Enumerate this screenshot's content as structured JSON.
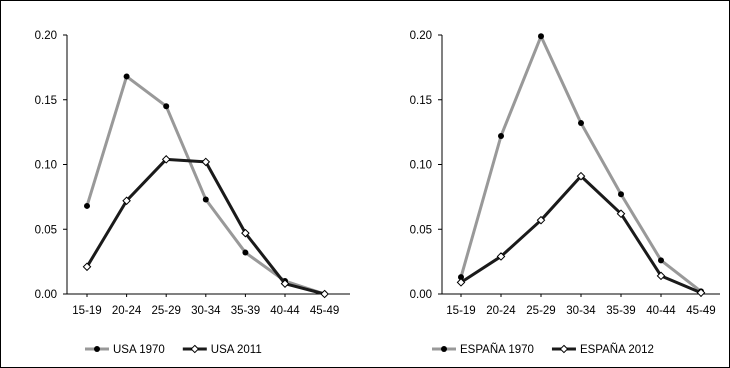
{
  "chart_data": [
    {
      "type": "line",
      "categories": [
        "15-19",
        "20-24",
        "25-29",
        "30-34",
        "35-39",
        "40-44",
        "45-49"
      ],
      "ylim": [
        0,
        0.2
      ],
      "yticks": [
        "0.00",
        "0.05",
        "0.10",
        "0.15",
        "0.20"
      ],
      "grid": false,
      "legend_position": "bottom",
      "series": [
        {
          "name": "USA 1970",
          "values": [
            0.068,
            0.168,
            0.145,
            0.073,
            0.032,
            0.01,
            0.0
          ],
          "color": "#999999",
          "marker": "filled-circle"
        },
        {
          "name": "USA 2011",
          "values": [
            0.021,
            0.072,
            0.104,
            0.102,
            0.047,
            0.008,
            0.0
          ],
          "color": "#1a1a1a",
          "marker": "open-diamond"
        }
      ]
    },
    {
      "type": "line",
      "categories": [
        "15-19",
        "20-24",
        "25-29",
        "30-34",
        "35-39",
        "40-44",
        "45-49"
      ],
      "ylim": [
        0,
        0.2
      ],
      "yticks": [
        "0.00",
        "0.05",
        "0.10",
        "0.15",
        "0.20"
      ],
      "grid": false,
      "legend_position": "bottom",
      "series": [
        {
          "name": "ESPAÑA 1970",
          "values": [
            0.013,
            0.122,
            0.199,
            0.132,
            0.077,
            0.026,
            0.002
          ],
          "color": "#999999",
          "marker": "filled-circle"
        },
        {
          "name": "ESPAÑA 2012",
          "values": [
            0.009,
            0.029,
            0.057,
            0.091,
            0.062,
            0.014,
            0.001
          ],
          "color": "#1a1a1a",
          "marker": "open-diamond"
        }
      ]
    }
  ]
}
